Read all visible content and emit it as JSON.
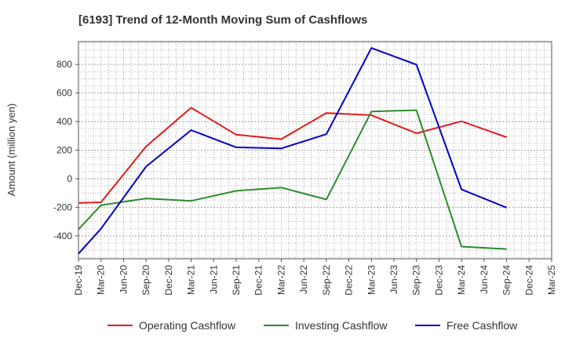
{
  "chart_data": {
    "type": "line",
    "title": "[6193]  Trend of 12-Month Moving Sum of Cashflows",
    "ylabel": "Amount (million yen)",
    "xlabel": "",
    "ylim": [
      -560,
      960
    ],
    "yticks": [
      -400,
      -200,
      0,
      200,
      400,
      600,
      800
    ],
    "categories": [
      "Dec-19",
      "Mar-20",
      "Jun-20",
      "Sep-20",
      "Dec-20",
      "Mar-21",
      "Jun-21",
      "Sep-21",
      "Dec-21",
      "Mar-22",
      "Jun-22",
      "Sep-22",
      "Dec-22",
      "Mar-23",
      "Jun-23",
      "Sep-23",
      "Dec-23",
      "Mar-24",
      "Jun-24",
      "Sep-24",
      "Dec-24",
      "Mar-25"
    ],
    "grid": true,
    "legend_position": "bottom",
    "series": [
      {
        "name": "Operating Cashflow",
        "color": "#e41a1c",
        "values": [
          -170,
          -165,
          null,
          225,
          null,
          497,
          null,
          308,
          null,
          277,
          null,
          460,
          null,
          445,
          null,
          318,
          null,
          402,
          null,
          290,
          null,
          null
        ]
      },
      {
        "name": "Investing Cashflow",
        "color": "#2e8b2e",
        "values": [
          -355,
          -185,
          null,
          -138,
          null,
          -155,
          null,
          -85,
          null,
          -62,
          null,
          -145,
          null,
          470,
          null,
          480,
          null,
          -475,
          null,
          -492,
          null,
          null
        ]
      },
      {
        "name": "Free Cashflow",
        "color": "#0000cc",
        "values": [
          -525,
          -350,
          null,
          85,
          null,
          340,
          null,
          220,
          null,
          212,
          null,
          312,
          null,
          915,
          null,
          798,
          null,
          -75,
          null,
          -202,
          null,
          null
        ]
      }
    ]
  }
}
